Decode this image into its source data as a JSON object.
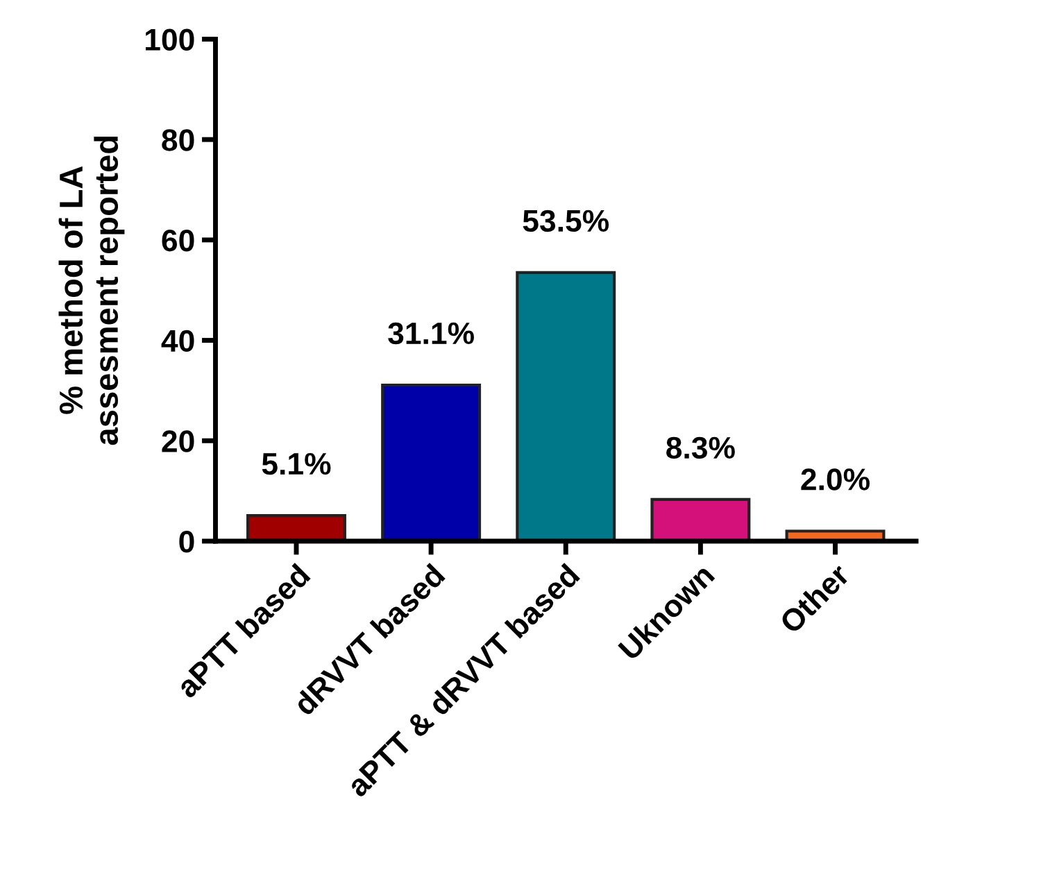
{
  "chart_data": {
    "type": "bar",
    "ylabel": "% method of LA\nassesment reported",
    "categories": [
      "aPTT based",
      "dRVVT based",
      "aPTT & dRVVT based",
      "Uknown",
      "Other"
    ],
    "values": [
      5.1,
      31.1,
      53.5,
      8.3,
      2.0
    ],
    "colors": [
      "#a00000",
      "#0000a8",
      "#00788a",
      "#d4107a",
      "#f26a21"
    ],
    "value_labels": [
      "5.1%",
      "31.1%",
      "53.5%",
      "8.3%",
      "2.0%"
    ],
    "ylim": [
      0,
      100
    ],
    "yticks": [
      0,
      20,
      40,
      60,
      80,
      100
    ],
    "grid": false,
    "legend": false
  }
}
